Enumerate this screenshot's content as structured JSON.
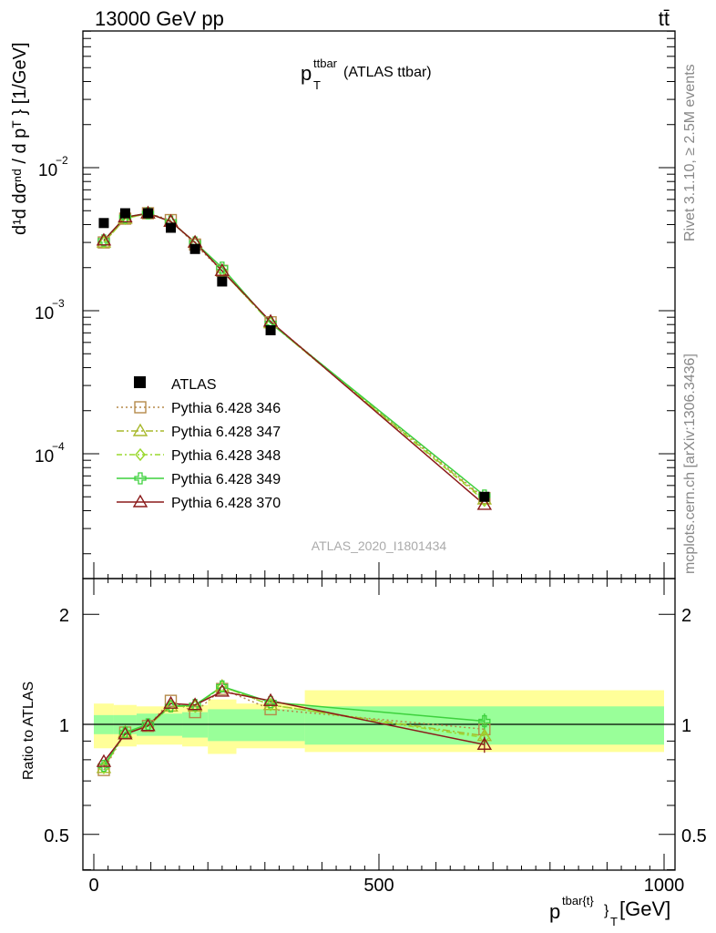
{
  "header": {
    "energy": "13000 GeV pp",
    "process": "tt̄"
  },
  "plot": {
    "title_main": "p",
    "title_sup": "ttbar",
    "title_sub": "T",
    "title_rest": " (ATLAS ttbar)",
    "watermark": "ATLAS_2020_I1801434"
  },
  "side_text": {
    "rivet": "Rivet 3.1.10, ≥ 2.5M events",
    "mcplots": "mcplots.cern.ch [arXiv:1306.3436]"
  },
  "axes": {
    "y_main_label": "d¹d dσⁿᵈ / d pᵀ  } [1/GeV]",
    "y_main_tick_labels": [
      "10",
      "10",
      "10"
    ],
    "y_main_tick_exps": [
      "−2",
      "−3",
      "−4"
    ],
    "y_ratio_label": "Ratio to ATLAS",
    "y_ratio_tick_labels": [
      "2",
      "1",
      "0.5"
    ],
    "x_label_main": "p",
    "x_label_sup": "tbar{t}",
    "x_label_rest": "}",
    "x_label_sub": "T",
    "x_label_unit": " [GeV]",
    "x_tick_labels": [
      "0",
      "500",
      "1000"
    ]
  },
  "chart_data": {
    "type": "line",
    "title": "p_T^{ttbar} (ATLAS ttbar)",
    "xlabel": "p^{tbar{t}}_T [GeV]",
    "ylabel": "1/σ dσ/dp_T [1/GeV]",
    "xlim": [
      -25,
      1000
    ],
    "ylim": [
      1e-05,
      0.1
    ],
    "yscale": "log",
    "ratio_ylim": [
      0.4,
      2.3
    ],
    "ratio_ylabel": "Ratio to ATLAS",
    "bins": [
      [
        0,
        35
      ],
      [
        35,
        75
      ],
      [
        75,
        115
      ],
      [
        115,
        155
      ],
      [
        155,
        200
      ],
      [
        200,
        250
      ],
      [
        250,
        370
      ],
      [
        370,
        1000
      ]
    ],
    "x": [
      17.5,
      55,
      95,
      135,
      177.5,
      225,
      310,
      685
    ],
    "data": {
      "name": "ATLAS",
      "values": [
        0.0041,
        0.0048,
        0.0048,
        0.0038,
        0.0027,
        0.0016,
        0.00073,
        5e-05
      ],
      "band_inner": [
        [
          0.94,
          1.06
        ],
        [
          0.94,
          1.06
        ],
        [
          0.93,
          1.07
        ],
        [
          0.93,
          1.07
        ],
        [
          0.92,
          1.08
        ],
        [
          0.9,
          1.1
        ],
        [
          0.9,
          1.1
        ],
        [
          0.88,
          1.12
        ]
      ],
      "band_outer": [
        [
          0.86,
          1.14
        ],
        [
          0.87,
          1.13
        ],
        [
          0.88,
          1.12
        ],
        [
          0.88,
          1.12
        ],
        [
          0.87,
          1.13
        ],
        [
          0.83,
          1.17
        ],
        [
          0.86,
          1.14
        ],
        [
          0.84,
          1.24
        ]
      ]
    },
    "legend_placement": "middle-left",
    "series": [
      {
        "name": "Pythia 6.428 346",
        "color": "#b58a4a",
        "dash": "2,3",
        "marker": "square",
        "values": [
          0.003,
          0.0044,
          0.0048,
          0.0043,
          0.0029,
          0.0019,
          0.00083,
          4.9e-05
        ],
        "ratio": [
          0.75,
          0.95,
          0.99,
          1.16,
          1.08,
          1.25,
          1.1,
          0.97
        ]
      },
      {
        "name": "Pythia 6.428 347",
        "color": "#a8b82c",
        "dash": "8,3,2,3",
        "marker": "triangle",
        "values": [
          0.003,
          0.0044,
          0.0048,
          0.0042,
          0.003,
          0.0019,
          0.00082,
          4.8e-05
        ],
        "ratio": [
          0.76,
          0.95,
          0.99,
          1.12,
          1.12,
          1.27,
          1.13,
          0.93
        ]
      },
      {
        "name": "Pythia 6.428 348",
        "color": "#9ad82e",
        "dash": "6,3,2,3",
        "marker": "diamond",
        "values": [
          0.003,
          0.0044,
          0.0048,
          0.0042,
          0.003,
          0.0019,
          0.00082,
          4.7e-05
        ],
        "ratio": [
          0.76,
          0.95,
          0.99,
          1.12,
          1.12,
          1.27,
          1.13,
          0.92
        ]
      },
      {
        "name": "Pythia 6.428 349",
        "color": "#3dd13d",
        "dash": "",
        "marker": "cross",
        "values": [
          0.0031,
          0.0045,
          0.0048,
          0.0042,
          0.003,
          0.002,
          0.00082,
          5.1e-05
        ],
        "ratio": [
          0.77,
          0.95,
          1.0,
          1.12,
          1.13,
          1.27,
          1.15,
          1.02
        ]
      },
      {
        "name": "Pythia 6.428 370",
        "color": "#8b1a1a",
        "dash": "",
        "marker": "triangle-open",
        "values": [
          0.0031,
          0.0045,
          0.0048,
          0.0042,
          0.003,
          0.0019,
          0.00084,
          4.4e-05
        ],
        "ratio": [
          0.79,
          0.94,
          0.99,
          1.14,
          1.13,
          1.23,
          1.16,
          0.88
        ]
      }
    ]
  }
}
